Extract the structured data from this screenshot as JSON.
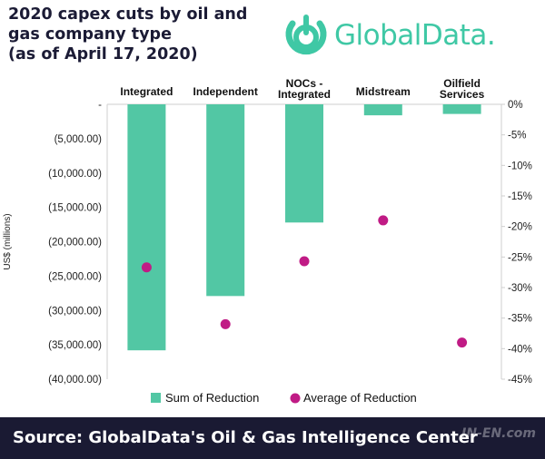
{
  "header": {
    "title_lines": [
      "2020 capex cuts by oil and",
      "gas company type",
      "(as of April 17, 2020)"
    ],
    "brand_name": "GlobalData."
  },
  "footer": {
    "source_text": "Source: GlobalData's Oil & Gas Intelligence Center",
    "watermark": "IN-EN.com"
  },
  "colors": {
    "bar": "#52c7a4",
    "dot": "#c01b85",
    "title": "#1b1b35",
    "brand": "#3fc8a5",
    "footer_bg": "#1a1a33"
  },
  "chart_data": {
    "type": "bar",
    "categories": [
      "Integrated",
      "Independent",
      "NOCs - Integrated",
      "Midstream",
      "Oilfield Services"
    ],
    "category_labels": [
      [
        "Integrated"
      ],
      [
        "Independent"
      ],
      [
        "NOCs -",
        "Integrated"
      ],
      [
        "Midstream"
      ],
      [
        "Oilfield",
        "Services"
      ]
    ],
    "series": [
      {
        "name": "Sum of Reduction",
        "axis": "left",
        "values": [
          -35800,
          -27900,
          -17200,
          -1600,
          -1400
        ]
      },
      {
        "name": "Average of Reduction",
        "axis": "right",
        "values": [
          -26.7,
          -36.0,
          -25.7,
          -19.0,
          -39.0
        ]
      }
    ],
    "ylabel": "US$ (millions)",
    "ylim": [
      -40000,
      0
    ],
    "y_ticks": [
      0,
      -5000,
      -10000,
      -15000,
      -20000,
      -25000,
      -30000,
      -35000,
      -40000
    ],
    "y_tick_labels": [
      "-",
      "(5,000.00)",
      "(10,000.00)",
      "(15,000.00)",
      "(20,000.00)",
      "(25,000.00)",
      "(30,000.00)",
      "(35,000.00)",
      "(40,000.00)"
    ],
    "y2lim": [
      -45,
      0
    ],
    "y2_ticks": [
      0,
      -5,
      -10,
      -15,
      -20,
      -25,
      -30,
      -35,
      -40,
      -45
    ],
    "y2_tick_labels": [
      "0%",
      "-5%",
      "-10%",
      "-15%",
      "-20%",
      "-25%",
      "-30%",
      "-35%",
      "-40%",
      "-45%"
    ],
    "legend_position": "bottom",
    "grid": false
  }
}
